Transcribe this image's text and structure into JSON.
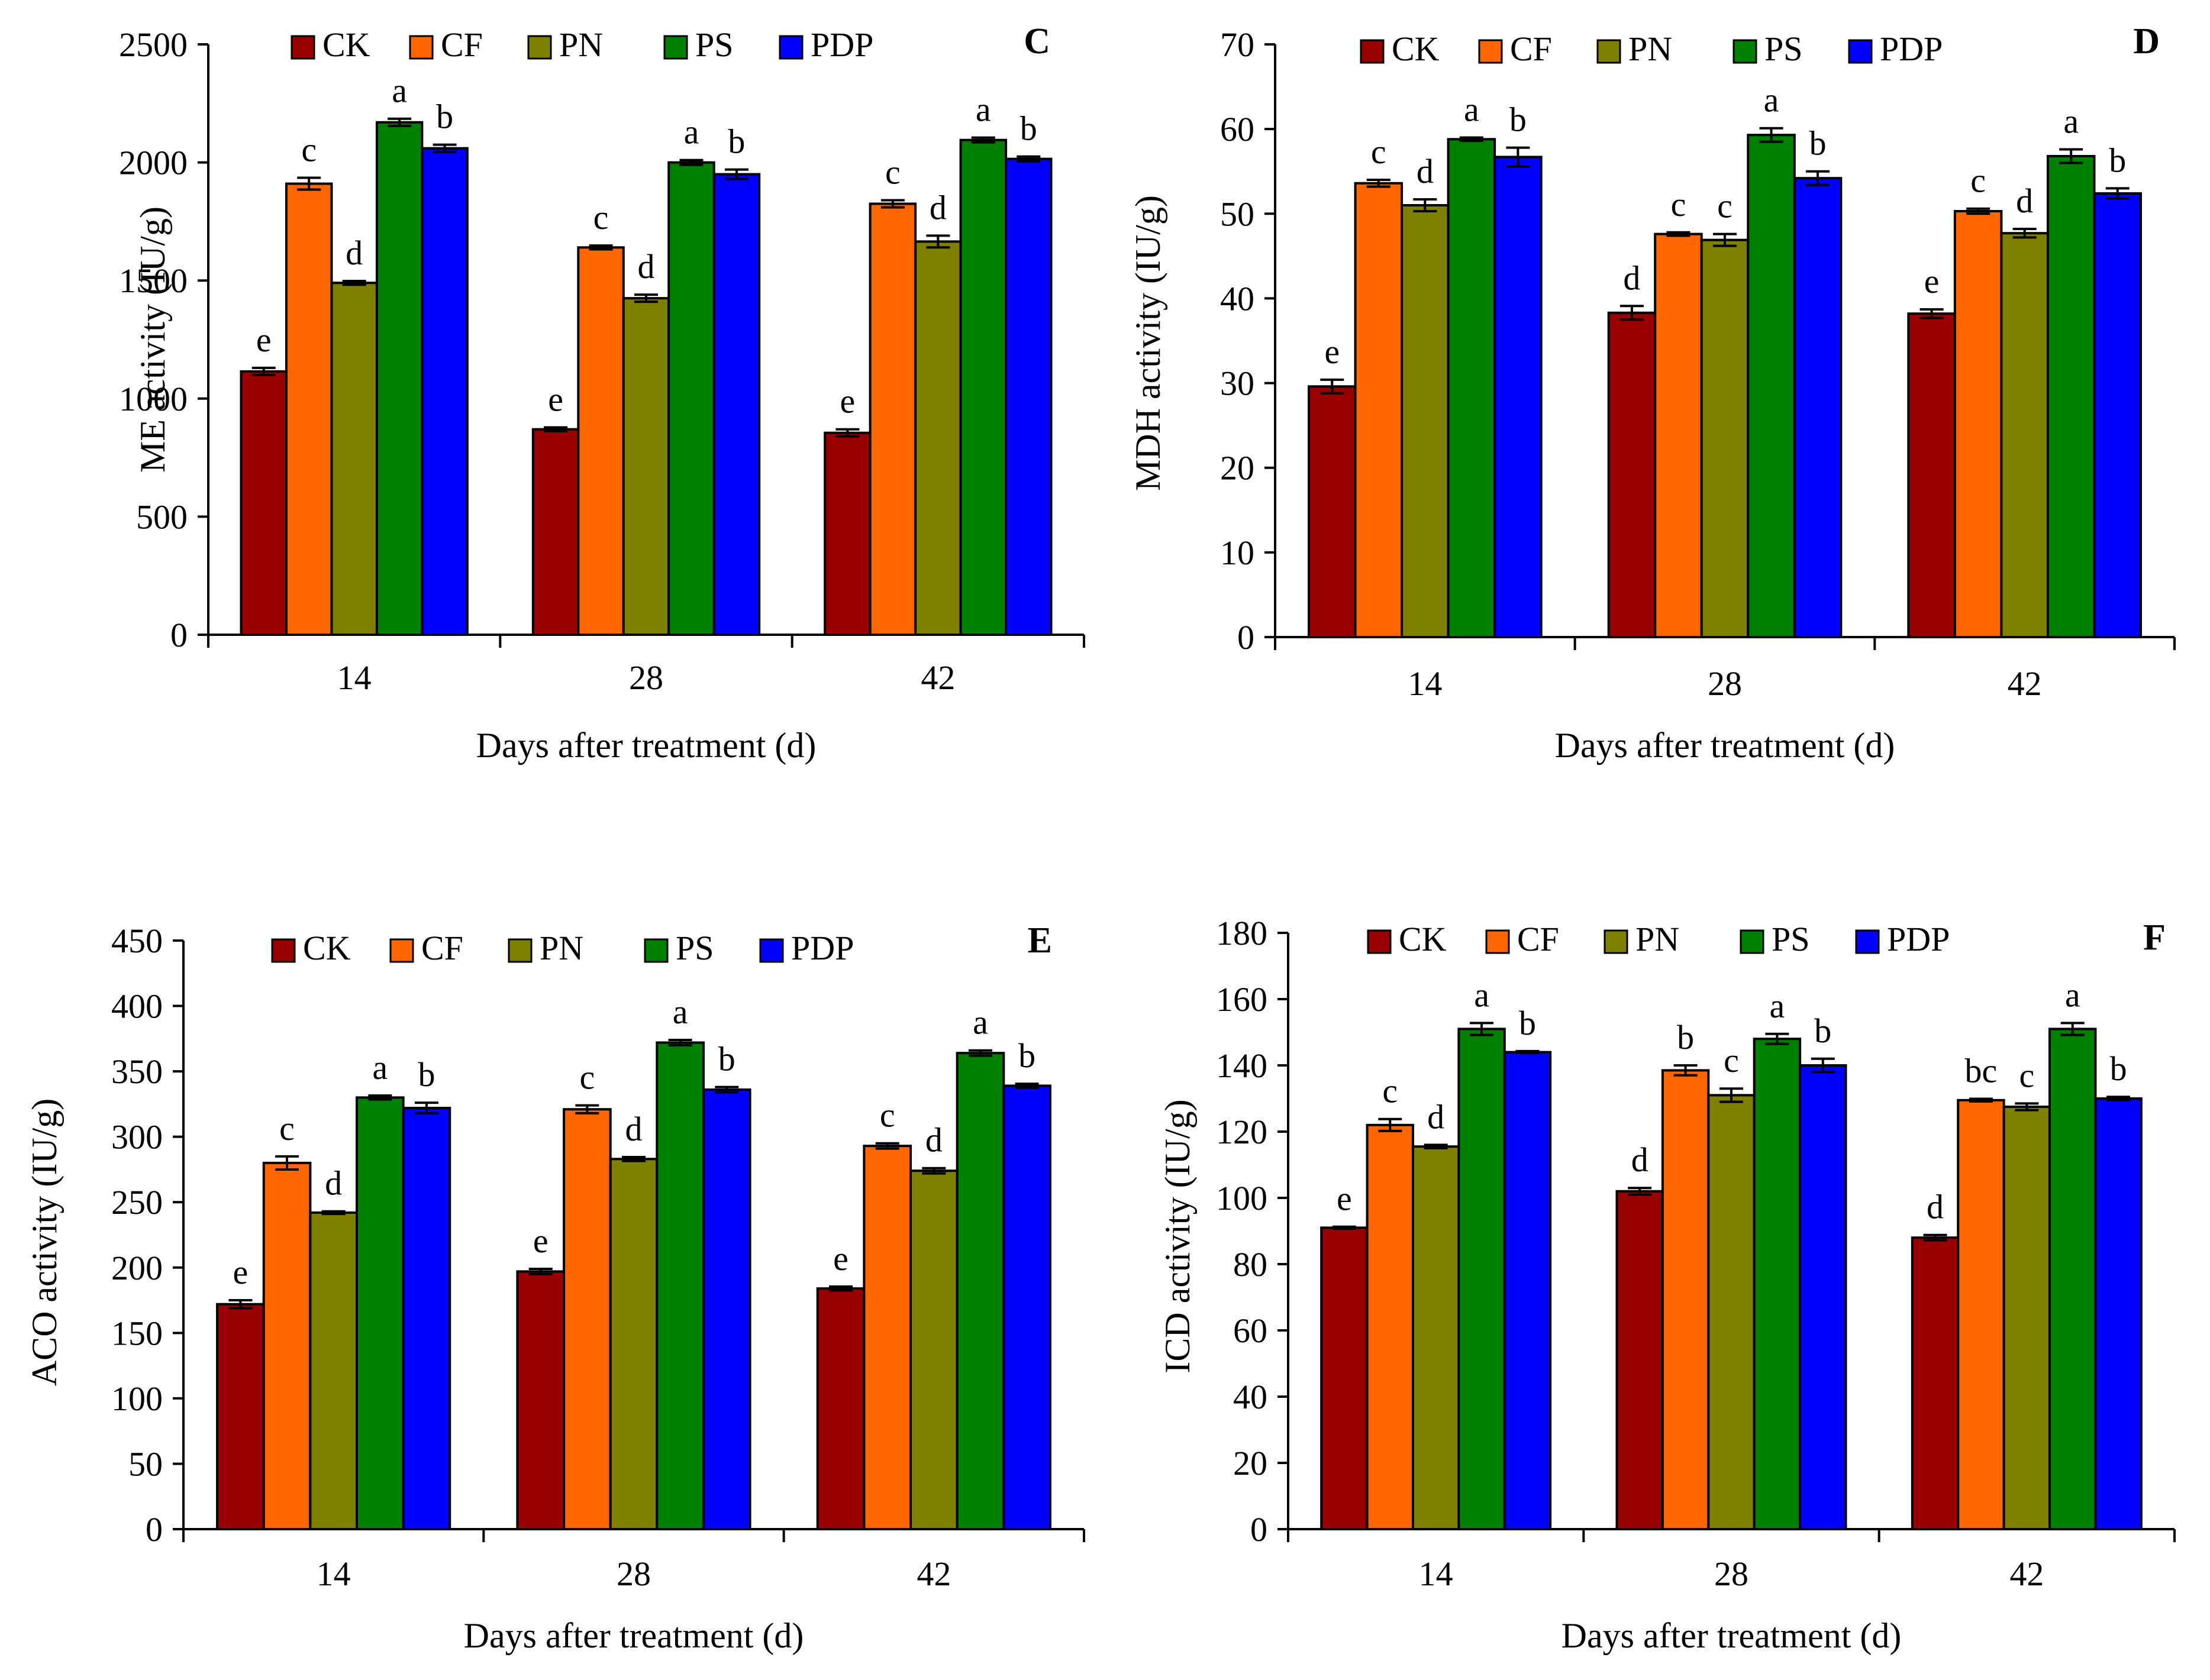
{
  "chart_data": [
    {
      "panel": "C",
      "type": "bar",
      "title": "",
      "xlabel": "Days after treatment (d)",
      "ylabel": "ME activity (IU/g)",
      "ylim": [
        0,
        2500
      ],
      "yticks": [
        0,
        500,
        1000,
        1500,
        2000,
        2500
      ],
      "grid": false,
      "legend_position": "top",
      "categories": [
        "14",
        "28",
        "42"
      ],
      "series": [
        {
          "name": "CK",
          "color": "#990000",
          "values": [
            1115,
            870,
            855
          ],
          "errors": [
            15,
            8,
            15
          ],
          "letters": [
            "e",
            "e",
            "e"
          ]
        },
        {
          "name": "CF",
          "color": "#FF6600",
          "values": [
            1910,
            1640,
            1825
          ],
          "errors": [
            25,
            8,
            15
          ],
          "letters": [
            "c",
            "c",
            "c"
          ]
        },
        {
          "name": "PN",
          "color": "#808000",
          "values": [
            1490,
            1425,
            1665
          ],
          "errors": [
            8,
            15,
            25
          ],
          "letters": [
            "d",
            "d",
            "d"
          ]
        },
        {
          "name": "PS",
          "color": "#008000",
          "values": [
            2170,
            2000,
            2095
          ],
          "errors": [
            15,
            10,
            10
          ],
          "letters": [
            "a",
            "a",
            "a"
          ]
        },
        {
          "name": "PDP",
          "color": "#0000FF",
          "values": [
            2060,
            1950,
            2015
          ],
          "errors": [
            15,
            20,
            10
          ],
          "letters": [
            "b",
            "b",
            "b"
          ]
        }
      ]
    },
    {
      "panel": "D",
      "type": "bar",
      "title": "",
      "xlabel": "Days after treatment (d)",
      "ylabel": "MDH activity (IU/g)",
      "ylim": [
        0,
        70
      ],
      "yticks": [
        0,
        10,
        20,
        30,
        40,
        50,
        60,
        70
      ],
      "grid": false,
      "legend_position": "top",
      "categories": [
        "14",
        "28",
        "42"
      ],
      "series": [
        {
          "name": "CK",
          "color": "#990000",
          "values": [
            29.6,
            38.3,
            38.2
          ],
          "errors": [
            0.8,
            0.8,
            0.5
          ],
          "letters": [
            "e",
            "d",
            "e"
          ]
        },
        {
          "name": "CF",
          "color": "#FF6600",
          "values": [
            53.6,
            47.6,
            50.3
          ],
          "errors": [
            0.4,
            0.2,
            0.3
          ],
          "letters": [
            "c",
            "c",
            "c"
          ]
        },
        {
          "name": "PN",
          "color": "#808000",
          "values": [
            51.0,
            46.9,
            47.7
          ],
          "errors": [
            0.7,
            0.7,
            0.5
          ],
          "letters": [
            "d",
            "c",
            "d"
          ]
        },
        {
          "name": "PS",
          "color": "#008000",
          "values": [
            58.8,
            59.3,
            56.8
          ],
          "errors": [
            0.2,
            0.8,
            0.8
          ],
          "letters": [
            "a",
            "a",
            "a"
          ]
        },
        {
          "name": "PDP",
          "color": "#0000FF",
          "values": [
            56.7,
            54.2,
            52.4
          ],
          "errors": [
            1.1,
            0.8,
            0.6
          ],
          "letters": [
            "b",
            "b",
            "b"
          ]
        }
      ]
    },
    {
      "panel": "E",
      "type": "bar",
      "title": "",
      "xlabel": "Days after treatment (d)",
      "ylabel": "ACO activity (IU/g)",
      "ylim": [
        0,
        450
      ],
      "yticks": [
        0,
        50,
        100,
        150,
        200,
        250,
        300,
        350,
        400,
        450
      ],
      "grid": false,
      "legend_position": "top",
      "categories": [
        "14",
        "28",
        "42"
      ],
      "series": [
        {
          "name": "CK",
          "color": "#990000",
          "values": [
            172,
            197,
            184
          ],
          "errors": [
            3,
            2,
            1.5
          ],
          "letters": [
            "e",
            "e",
            "e"
          ]
        },
        {
          "name": "CF",
          "color": "#FF6600",
          "values": [
            280,
            321,
            293
          ],
          "errors": [
            5,
            3,
            2
          ],
          "letters": [
            "c",
            "c",
            "c"
          ]
        },
        {
          "name": "PN",
          "color": "#808000",
          "values": [
            242,
            283,
            274
          ],
          "errors": [
            1,
            1.5,
            2
          ],
          "letters": [
            "d",
            "d",
            "d"
          ]
        },
        {
          "name": "PS",
          "color": "#008000",
          "values": [
            330,
            372,
            364
          ],
          "errors": [
            1.5,
            2,
            2
          ],
          "letters": [
            "a",
            "a",
            "a"
          ]
        },
        {
          "name": "PDP",
          "color": "#0000FF",
          "values": [
            322,
            336,
            339
          ],
          "errors": [
            4,
            2,
            1.5
          ],
          "letters": [
            "b",
            "b",
            "b"
          ]
        }
      ]
    },
    {
      "panel": "F",
      "type": "bar",
      "title": "",
      "xlabel": "Days after treatment (d)",
      "ylabel": "ICD activity (IU/g)",
      "ylim": [
        0,
        180
      ],
      "yticks": [
        0,
        20,
        40,
        60,
        80,
        100,
        120,
        140,
        160,
        180
      ],
      "grid": false,
      "legend_position": "top",
      "categories": [
        "14",
        "28",
        "42"
      ],
      "series": [
        {
          "name": "CK",
          "color": "#990000",
          "values": [
            91,
            102,
            88
          ],
          "errors": [
            0.3,
            1,
            0.8
          ],
          "letters": [
            "e",
            "d",
            "d"
          ]
        },
        {
          "name": "CF",
          "color": "#FF6600",
          "values": [
            122,
            138.5,
            129.5
          ],
          "errors": [
            1.8,
            1.5,
            0.4
          ],
          "letters": [
            "c",
            "b",
            "bc"
          ]
        },
        {
          "name": "PN",
          "color": "#808000",
          "values": [
            115.5,
            131,
            127.5
          ],
          "errors": [
            0.5,
            2,
            1
          ],
          "letters": [
            "d",
            "c",
            "c"
          ]
        },
        {
          "name": "PS",
          "color": "#008000",
          "values": [
            151,
            148,
            151
          ],
          "errors": [
            1.8,
            1.5,
            1.8
          ],
          "letters": [
            "a",
            "a",
            "a"
          ]
        },
        {
          "name": "PDP",
          "color": "#0000FF",
          "values": [
            144,
            140,
            130
          ],
          "errors": [
            0.3,
            2,
            0.5
          ],
          "letters": [
            "b",
            "b",
            "b"
          ]
        }
      ]
    }
  ]
}
